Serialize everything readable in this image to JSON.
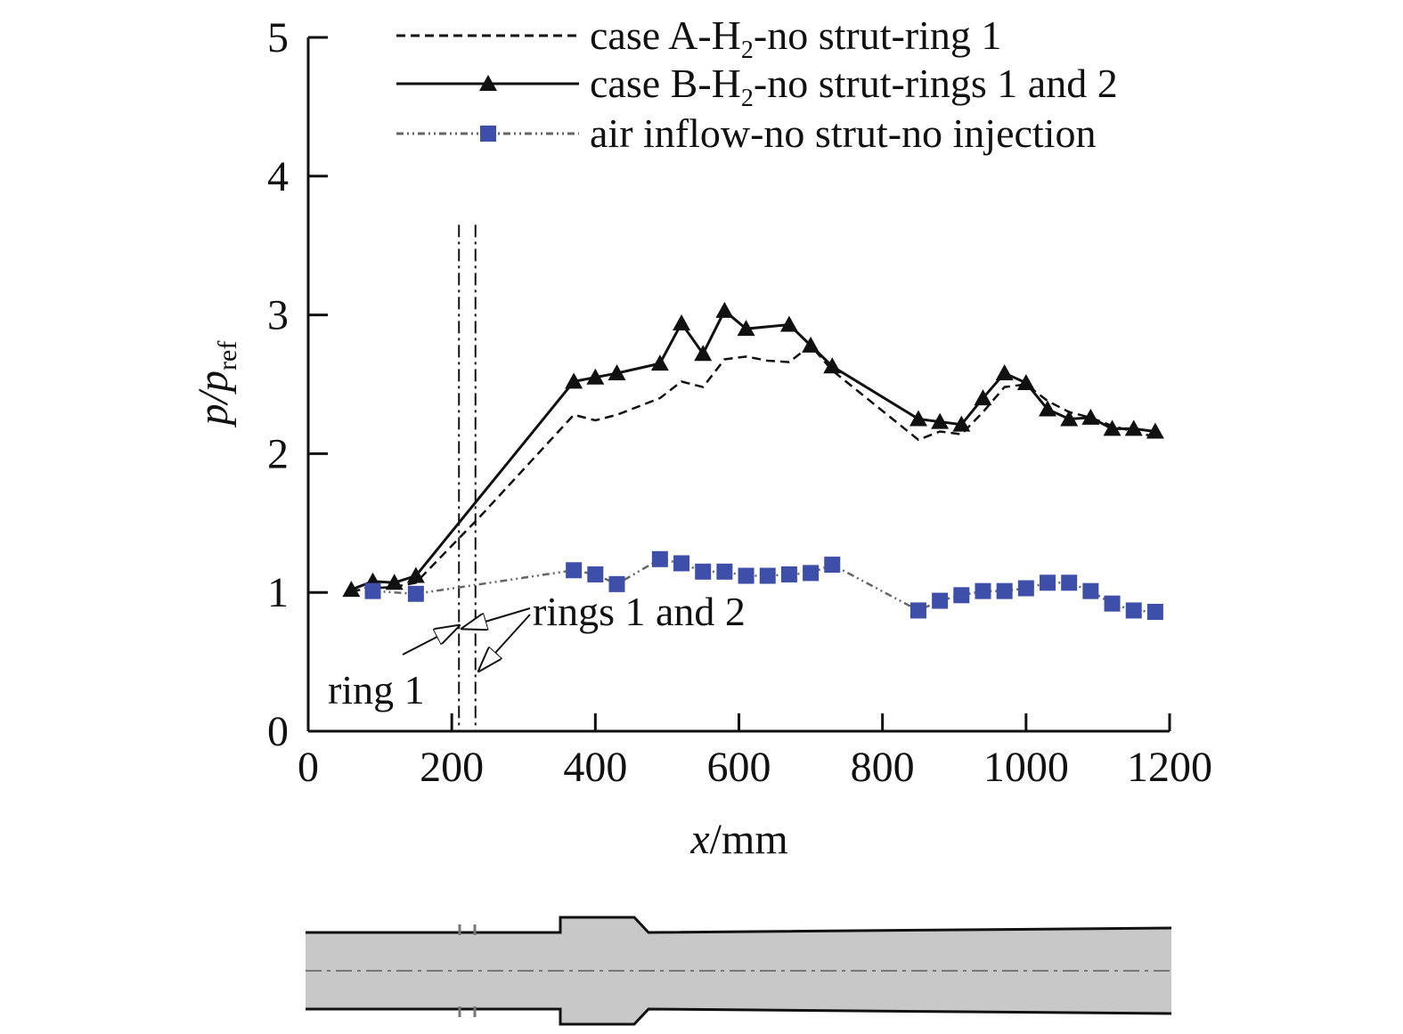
{
  "chart_data": {
    "type": "line",
    "xlabel": "mm",
    "xlabel_symbol": "x",
    "ylabel_symbol": "p/p",
    "ylabel_subscript": "ref",
    "xlim": [
      0,
      1200
    ],
    "ylim": [
      0,
      5
    ],
    "x_ticks": [
      0,
      200,
      400,
      600,
      800,
      1000,
      1200
    ],
    "y_ticks": [
      0,
      1,
      2,
      3,
      4,
      5
    ],
    "grid": false,
    "legend_position": "top",
    "series": [
      {
        "name": "case A-H2-no strut-ring 1",
        "name_parts": [
          "case A-H",
          "2",
          "-no strut-ring 1"
        ],
        "style": "dashed",
        "marker": "none",
        "color": "#111111",
        "x": [
          60,
          90,
          120,
          150,
          240,
          370,
          400,
          430,
          490,
          520,
          550,
          580,
          610,
          640,
          670,
          700,
          730,
          850,
          880,
          910,
          940,
          970,
          1000,
          1030,
          1060,
          1090,
          1120,
          1150,
          1180
        ],
        "y": [
          1.01,
          1.03,
          1.04,
          1.07,
          1.55,
          2.28,
          2.24,
          2.28,
          2.4,
          2.52,
          2.48,
          2.68,
          2.7,
          2.67,
          2.66,
          2.78,
          2.6,
          2.1,
          2.16,
          2.14,
          2.3,
          2.48,
          2.5,
          2.38,
          2.3,
          2.26,
          2.2,
          2.16,
          2.12
        ]
      },
      {
        "name": "case B-H2-no strut-rings 1 and 2",
        "name_parts": [
          "case B-H",
          "2",
          "-no strut-rings 1 and 2"
        ],
        "style": "solid",
        "marker": "triangle",
        "color": "#111111",
        "x": [
          60,
          90,
          120,
          150,
          370,
          400,
          430,
          490,
          520,
          550,
          580,
          610,
          670,
          700,
          730,
          850,
          880,
          910,
          940,
          970,
          1000,
          1030,
          1060,
          1090,
          1120,
          1150,
          1180
        ],
        "y": [
          1.02,
          1.08,
          1.07,
          1.12,
          2.52,
          2.55,
          2.58,
          2.65,
          2.94,
          2.72,
          3.03,
          2.9,
          2.93,
          2.78,
          2.63,
          2.25,
          2.23,
          2.21,
          2.4,
          2.58,
          2.51,
          2.32,
          2.25,
          2.26,
          2.18,
          2.18,
          2.16
        ]
      },
      {
        "name": "air inflow-no strut-no injection",
        "name_parts": [
          "air inflow-no strut-no injection",
          "",
          ""
        ],
        "style": "dash-dot-dot",
        "marker": "square",
        "color": "#3d4fa8",
        "x": [
          90,
          150,
          370,
          400,
          430,
          490,
          520,
          550,
          580,
          610,
          640,
          670,
          700,
          730,
          850,
          880,
          910,
          940,
          970,
          1000,
          1030,
          1060,
          1090,
          1120,
          1150,
          1180
        ],
        "y": [
          1.01,
          0.99,
          1.16,
          1.13,
          1.06,
          1.24,
          1.21,
          1.15,
          1.15,
          1.12,
          1.12,
          1.13,
          1.14,
          1.2,
          0.87,
          0.94,
          0.98,
          1.01,
          1.01,
          1.03,
          1.07,
          1.07,
          1.01,
          0.92,
          0.87,
          0.86
        ]
      }
    ],
    "injection_rings": [
      {
        "x": 210,
        "top_y": 3.65
      },
      {
        "x": 233,
        "top_y": 3.65
      }
    ],
    "annotations": {
      "ring1": "ring 1",
      "rings12": "rings 1 and 2"
    }
  }
}
